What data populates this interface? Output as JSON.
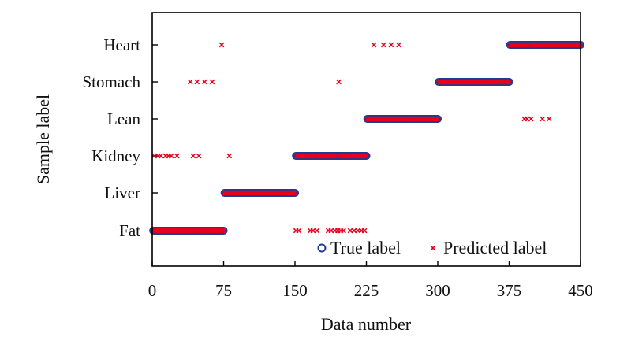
{
  "chart_data": {
    "type": "scatter",
    "xlabel": "Data number",
    "ylabel": "Sample label",
    "xlim": [
      0,
      450
    ],
    "x_ticks": [
      "0",
      "75",
      "150",
      "225",
      "300",
      "375",
      "450"
    ],
    "categories": [
      "Fat",
      "Liver",
      "Kidney",
      "Lean",
      "Stomach",
      "Heart"
    ],
    "grid": false,
    "legend_position": "bottom-right",
    "series": [
      {
        "name": "True label",
        "marker": "circle",
        "color": "#1f3a93",
        "ranges": [
          {
            "category": "Fat",
            "x_start": 1,
            "x_end": 75
          },
          {
            "category": "Liver",
            "x_start": 76,
            "x_end": 150
          },
          {
            "category": "Kidney",
            "x_start": 151,
            "x_end": 225
          },
          {
            "category": "Lean",
            "x_start": 226,
            "x_end": 300
          },
          {
            "category": "Stomach",
            "x_start": 301,
            "x_end": 375
          },
          {
            "category": "Heart",
            "x_start": 376,
            "x_end": 450
          }
        ]
      },
      {
        "name": "Predicted label",
        "marker": "x",
        "color": "#e8001c",
        "ranges": [
          {
            "category": "Fat",
            "x_start": 1,
            "x_end": 75
          },
          {
            "category": "Liver",
            "x_start": 76,
            "x_end": 150
          },
          {
            "category": "Kidney",
            "x_start": 151,
            "x_end": 225
          },
          {
            "category": "Lean",
            "x_start": 226,
            "x_end": 300
          },
          {
            "category": "Stomach",
            "x_start": 301,
            "x_end": 375
          },
          {
            "category": "Heart",
            "x_start": 376,
            "x_end": 450
          }
        ],
        "misclassified": [
          {
            "category": "Heart",
            "x": [
              73,
              233,
              243,
              251,
              259
            ]
          },
          {
            "category": "Stomach",
            "x": [
              40,
              47,
              55,
              63,
              196
            ]
          },
          {
            "category": "Lean",
            "x": [
              391,
              394,
              398,
              410,
              417
            ]
          },
          {
            "category": "Kidney",
            "x": [
              2,
              6,
              9,
              14,
              17,
              20,
              26,
              43,
              49,
              81
            ]
          },
          {
            "category": "Fat",
            "x": [
              151,
              154,
              166,
              169,
              173,
              185,
              188,
              192,
              195,
              198,
              201,
              208,
              212,
              216,
              220,
              223
            ]
          }
        ]
      }
    ]
  }
}
